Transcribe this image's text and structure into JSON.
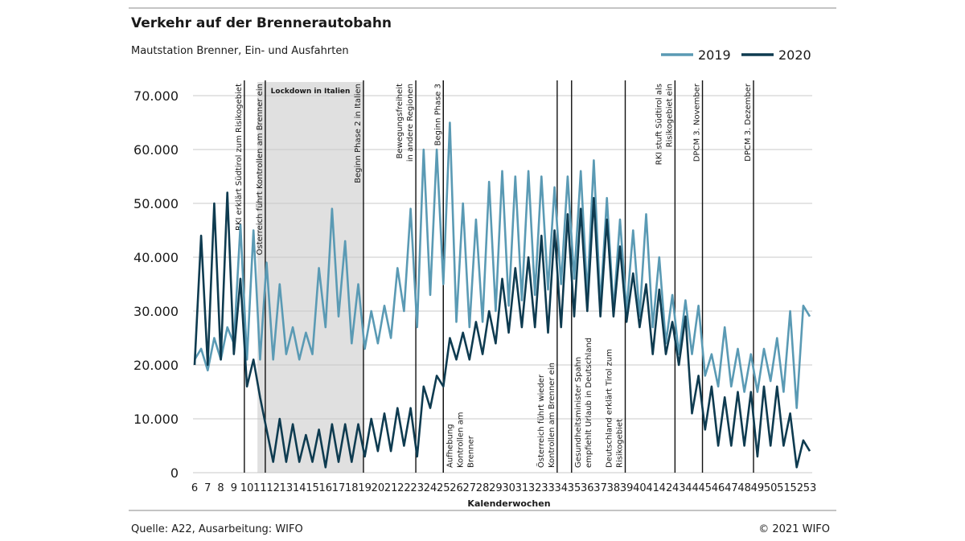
{
  "chart_data": {
    "type": "line",
    "title": "Verkehr auf der Brennerautobahn",
    "subtitle": "Mautstation Brenner, Ein- und Ausfahrten",
    "x_label": "Kalenderwochen",
    "source": "Quelle: A22, Ausarbeitung: WIFO",
    "copyright": "© 2021 WIFO",
    "legend": "top-right",
    "grid": true,
    "x": [
      6,
      6.5,
      7,
      7.5,
      8,
      8.5,
      9,
      9.5,
      10,
      10.5,
      11,
      11.5,
      12,
      12.5,
      13,
      13.5,
      14,
      14.5,
      15,
      15.5,
      16,
      16.5,
      17,
      17.5,
      18,
      18.5,
      19,
      19.5,
      20,
      20.5,
      21,
      21.5,
      22,
      22.5,
      23,
      23.5,
      24,
      24.5,
      25,
      25.5,
      26,
      26.5,
      27,
      27.5,
      28,
      28.5,
      29,
      29.5,
      30,
      30.5,
      31,
      31.5,
      32,
      32.5,
      33,
      33.5,
      34,
      34.5,
      35,
      35.5,
      36,
      36.5,
      37,
      37.5,
      38,
      38.5,
      39,
      39.5,
      40,
      40.5,
      41,
      41.5,
      42,
      42.5,
      43,
      43.5,
      44,
      44.5,
      45,
      45.5,
      46,
      46.5,
      47,
      47.5,
      48,
      48.5,
      49,
      49.5,
      50,
      50.5,
      51,
      51.5,
      52,
      52.5,
      53
    ],
    "series": [
      {
        "name": "2019",
        "color": "#5a9ab4",
        "values": [
          21000,
          23000,
          19000,
          25000,
          21000,
          27000,
          24000,
          46000,
          21000,
          45000,
          21000,
          39000,
          21000,
          35000,
          22000,
          27000,
          21000,
          26000,
          22000,
          38000,
          27000,
          49000,
          29000,
          43000,
          24000,
          35000,
          23000,
          30000,
          24000,
          31000,
          25000,
          38000,
          30000,
          49000,
          27000,
          60000,
          33000,
          60000,
          35000,
          65000,
          28000,
          50000,
          27000,
          47000,
          28000,
          54000,
          30000,
          56000,
          31000,
          55000,
          32000,
          56000,
          33000,
          55000,
          34000,
          53000,
          35000,
          55000,
          36000,
          56000,
          33000,
          58000,
          31000,
          51000,
          30000,
          47000,
          30000,
          45000,
          29000,
          48000,
          27000,
          40000,
          24000,
          33000,
          22000,
          32000,
          22000,
          31000,
          18000,
          22000,
          16000,
          27000,
          16000,
          23000,
          15000,
          22000,
          15000,
          23000,
          17000,
          25000,
          15000,
          30000,
          12000,
          31000,
          29000
        ]
      },
      {
        "name": "2020",
        "color": "#0e3b50",
        "values": [
          20000,
          44000,
          20000,
          50000,
          21000,
          52000,
          22000,
          36000,
          16000,
          21000,
          14000,
          8000,
          2000,
          10000,
          2000,
          9000,
          2000,
          7000,
          2000,
          8000,
          1000,
          9000,
          2000,
          9000,
          2000,
          9000,
          3000,
          10000,
          4000,
          11000,
          4000,
          12000,
          5000,
          12000,
          3000,
          16000,
          12000,
          18000,
          16000,
          25000,
          21000,
          26000,
          21000,
          28000,
          22000,
          30000,
          24000,
          36000,
          26000,
          38000,
          27000,
          40000,
          27000,
          44000,
          26000,
          45000,
          27000,
          48000,
          29000,
          49000,
          30000,
          51000,
          29000,
          47000,
          29000,
          42000,
          28000,
          37000,
          27000,
          35000,
          22000,
          34000,
          22000,
          28000,
          20000,
          29000,
          11000,
          18000,
          8000,
          16000,
          5000,
          14000,
          5000,
          15000,
          5000,
          15000,
          3000,
          16000,
          5000,
          16000,
          5000,
          11000,
          1000,
          6000,
          4000
        ]
      }
    ],
    "xlim": [
      6,
      53
    ],
    "xticks": [
      6,
      7,
      8,
      9,
      10,
      11,
      12,
      13,
      14,
      15,
      16,
      17,
      18,
      19,
      20,
      21,
      22,
      23,
      24,
      25,
      26,
      27,
      28,
      29,
      30,
      31,
      32,
      33,
      34,
      35,
      36,
      37,
      38,
      39,
      40,
      41,
      42,
      43,
      44,
      45,
      46,
      47,
      48,
      49,
      50,
      51,
      52,
      53
    ],
    "ylim": [
      0,
      70000
    ],
    "yticks": [
      0,
      {
        "value": 10000,
        "label": "10.000"
      },
      {
        "value": 20000,
        "label": "20.000"
      },
      {
        "value": 30000,
        "label": "30.000"
      },
      {
        "value": 40000,
        "label": "40.000"
      },
      {
        "value": 50000,
        "label": "50.000"
      },
      {
        "value": 60000,
        "label": "60.000"
      },
      {
        "value": 70000,
        "label": "70.000"
      }
    ],
    "shaded": {
      "from": 10.8,
      "to": 18.9,
      "label": "Lockdown in Italien"
    },
    "events": [
      {
        "x": 9.8,
        "lines": [
          "RKI erklärt Südtirol zum Risikogebiet"
        ]
      },
      {
        "x": 11.4,
        "lines": [
          "Österreich führt Kontrollen am Brenner ein"
        ]
      },
      {
        "x": 18.9,
        "lines": [
          "Beginn Phase 2 in Italien"
        ]
      },
      {
        "x": 22.9,
        "lines": [
          "Bewegungsfreiheit",
          "in andere Regionen"
        ]
      },
      {
        "x": 25.0,
        "lines": [
          "Beginn Phase 3"
        ]
      },
      {
        "x": 25.0,
        "lines": [
          "Aufhebung",
          "Kontrollen am",
          "Brenner"
        ]
      },
      {
        "x": 33.7,
        "lines": [
          "Österreich führt wieder",
          "Kontrollen am Brenner ein"
        ]
      },
      {
        "x": 34.8,
        "lines": [
          "Gesundheitsminister Spahn",
          "empfiehlt Urlaub in Deutschland"
        ]
      },
      {
        "x": 38.9,
        "lines": [
          "Deutschland erklärt Tirol zum",
          "Risikogebiet"
        ]
      },
      {
        "x": 42.7,
        "lines": [
          "RKI stuft Südtirol als",
          "Risikogebiet ein"
        ]
      },
      {
        "x": 44.8,
        "lines": [
          "DPCM 3. November"
        ]
      },
      {
        "x": 48.7,
        "lines": [
          "DPCM 3. Dezember"
        ]
      }
    ]
  }
}
